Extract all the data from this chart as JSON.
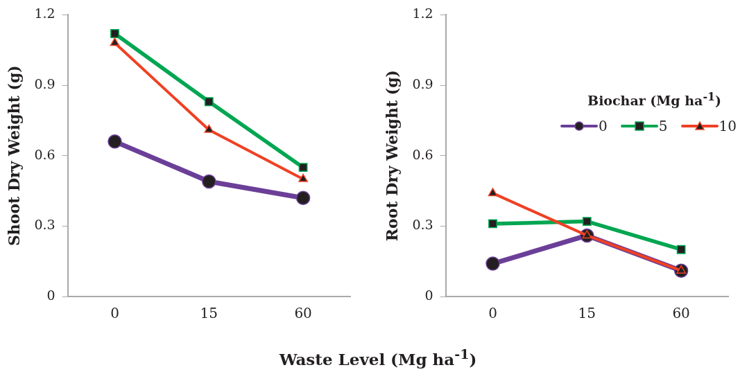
{
  "chart_data": [
    {
      "type": "line",
      "ylabel": "Shoot Dry Weight (g)",
      "xlabel": "Waste Level (Mg ha$^{-1}$)",
      "categories": [
        "0",
        "15",
        "60"
      ],
      "ylim": [
        0,
        1.2
      ],
      "yticks": [
        {
          "value": 0,
          "label": "0"
        },
        0.3,
        0.6,
        0.9,
        1.2
      ],
      "grid": false,
      "legend": false,
      "series": [
        {
          "color": "#6b3f98",
          "marker": "circle",
          "values": [
            0.66,
            0.49,
            0.42
          ]
        },
        {
          "color": "#00a651",
          "marker": "square",
          "values": [
            1.12,
            0.83,
            0.55
          ]
        },
        {
          "color": "#ef4123",
          "marker": "triangle",
          "values": [
            1.08,
            0.71,
            0.5
          ]
        }
      ]
    },
    {
      "type": "line",
      "ylabel": "Root Dry Weight (g)",
      "legend_title": "Biochar (Mg ha$^{-1}$)",
      "categories": [
        "0",
        "15",
        "60"
      ],
      "ylim": [
        0,
        1.2
      ],
      "yticks": [
        {
          "value": 0,
          "label": "0"
        },
        0.3,
        0.6,
        0.9,
        1.2
      ],
      "grid": false,
      "legend": "top right",
      "series": [
        {
          "name": "0",
          "color": "#6b3f98",
          "marker": "circle",
          "values": [
            0.14,
            0.26,
            0.11
          ]
        },
        {
          "name": "5",
          "color": "#00a651",
          "marker": "square",
          "values": [
            0.31,
            0.32,
            0.2
          ]
        },
        {
          "name": "10",
          "color": "#ef4123",
          "marker": "triangle",
          "values": [
            0.44,
            0.26,
            0.11
          ]
        }
      ]
    }
  ]
}
